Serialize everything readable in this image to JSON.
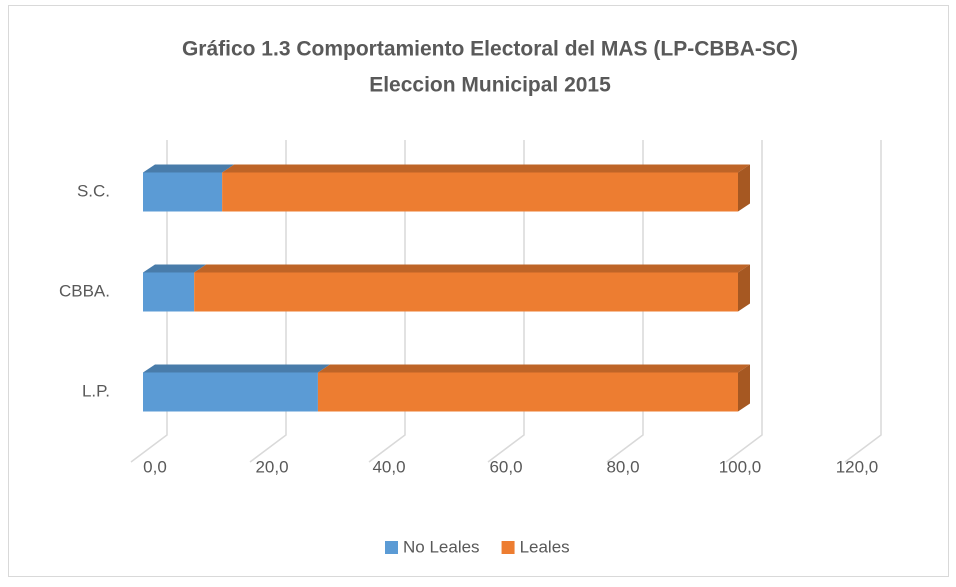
{
  "chart_data": {
    "type": "bar3d_stacked_horizontal",
    "title": "Gráfico 1.3 Comportamiento Electoral del MAS (LP-CBBA-SC)",
    "subtitle": "Eleccion Municipal 2015",
    "categories": [
      "L.P.",
      "CBBA.",
      "S.C."
    ],
    "series": [
      {
        "name": "No Leales",
        "color": "#5b9bd5",
        "values": [
          29.4,
          8.6,
          13.3
        ]
      },
      {
        "name": "Leales",
        "color": "#ed7d31",
        "values": [
          70.6,
          91.4,
          86.7
        ]
      }
    ],
    "xlim": [
      0,
      120
    ],
    "xticks": [
      {
        "value": 0,
        "label": "0,0"
      },
      {
        "value": 20,
        "label": "20,0"
      },
      {
        "value": 40,
        "label": "40,0"
      },
      {
        "value": 60,
        "label": "60,0"
      },
      {
        "value": 80,
        "label": "80,0"
      },
      {
        "value": 100,
        "label": "100,0"
      },
      {
        "value": 120,
        "label": "120,0"
      }
    ],
    "grid": true,
    "legend": "bottom"
  }
}
